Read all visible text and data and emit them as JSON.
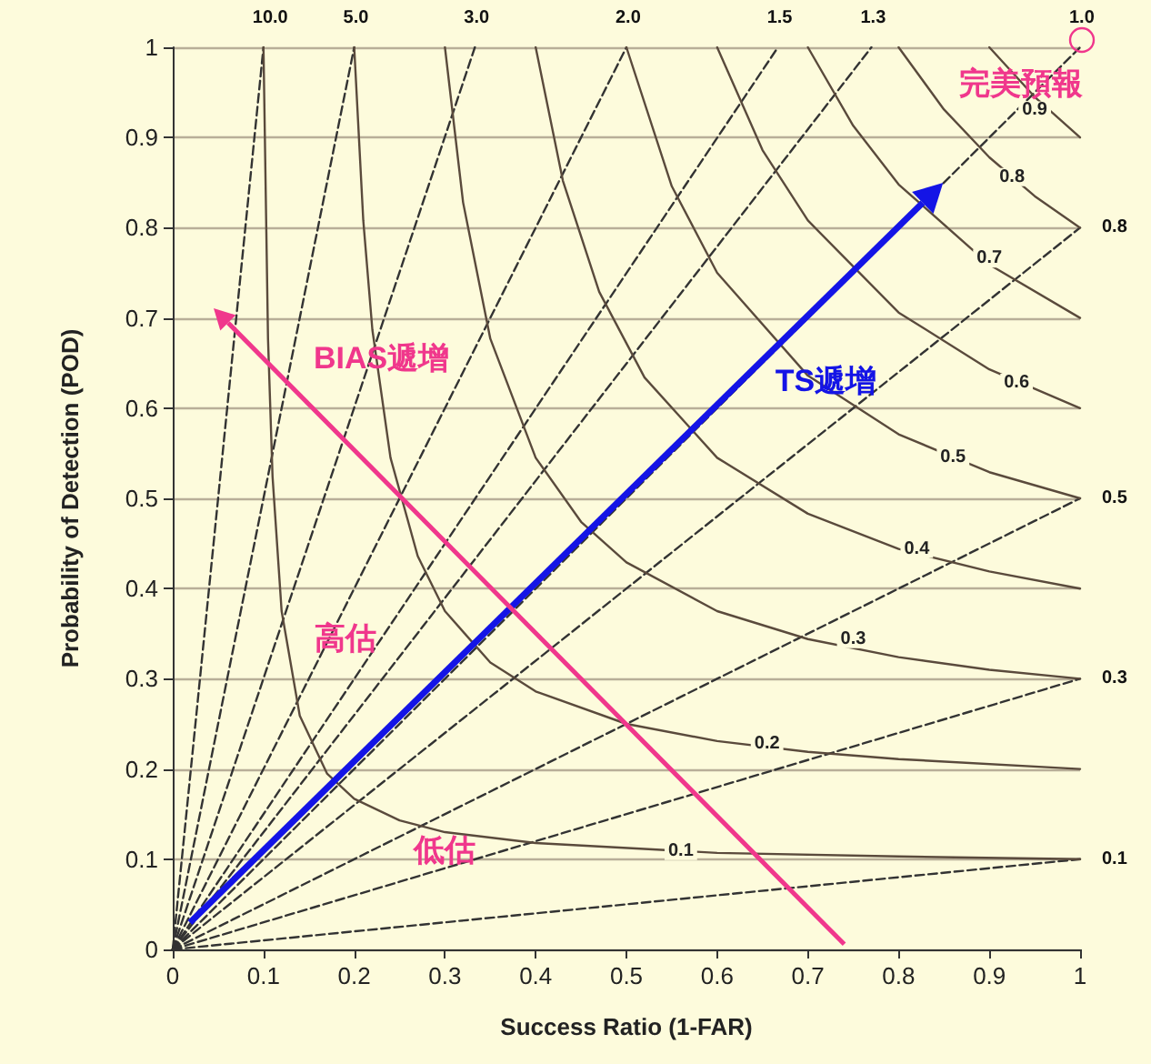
{
  "chart_data": {
    "type": "line",
    "xlabel": "Success Ratio (1-FAR)",
    "ylabel": "Probability of Detection (POD)",
    "xlim": [
      0,
      1
    ],
    "ylim": [
      0,
      1
    ],
    "xticks": [
      0,
      0.1,
      0.2,
      0.3,
      0.4,
      0.5,
      0.6,
      0.7,
      0.8,
      0.9,
      1
    ],
    "yticks": [
      0,
      0.1,
      0.2,
      0.3,
      0.4,
      0.5,
      0.6,
      0.7,
      0.8,
      0.9,
      1
    ],
    "grid": "y",
    "marker": "none",
    "series": [
      {
        "name": "10.0",
        "color": "#333333",
        "line_style": "dashed",
        "x": [
          0,
          0.1
        ],
        "values": [
          0,
          1
        ]
      },
      {
        "name": "5.0",
        "color": "#333333",
        "line_style": "dashed",
        "x": [
          0,
          0.2
        ],
        "values": [
          0,
          1
        ]
      },
      {
        "name": "3.0",
        "color": "#333333",
        "line_style": "dashed",
        "x": [
          0,
          0.333
        ],
        "values": [
          0,
          1
        ]
      },
      {
        "name": "2.0",
        "color": "#333333",
        "line_style": "dashed",
        "x": [
          0,
          0.5
        ],
        "values": [
          0,
          1
        ]
      },
      {
        "name": "1.5",
        "color": "#333333",
        "line_style": "dashed",
        "x": [
          0,
          0.667
        ],
        "values": [
          0,
          1
        ]
      },
      {
        "name": "1.3",
        "color": "#333333",
        "line_style": "dashed",
        "x": [
          0,
          0.77
        ],
        "values": [
          0,
          1
        ]
      },
      {
        "name": "1.0",
        "color": "#333333",
        "line_style": "dashed",
        "x": [
          0,
          1
        ],
        "values": [
          0,
          1
        ]
      },
      {
        "name": "0.8",
        "color": "#333333",
        "line_style": "dashed",
        "x": [
          0,
          1
        ],
        "values": [
          0,
          0.8
        ]
      },
      {
        "name": "0.5",
        "color": "#333333",
        "line_style": "dashed",
        "x": [
          0,
          1
        ],
        "values": [
          0,
          0.5
        ]
      },
      {
        "name": "0.3",
        "color": "#333333",
        "line_style": "dashed",
        "x": [
          0,
          1
        ],
        "values": [
          0,
          0.3
        ]
      },
      {
        "name": "0.1",
        "color": "#333333",
        "line_style": "dashed",
        "x": [
          0,
          1
        ],
        "values": [
          0,
          0.1
        ]
      },
      {
        "color": "#5a4a3c",
        "line_style": "solid",
        "x": [
          0.1,
          0.105,
          0.11,
          0.12,
          0.14,
          0.17,
          0.2,
          0.25,
          0.3,
          0.4,
          0.6,
          0.8,
          1
        ],
        "values": [
          1,
          0.677,
          0.524,
          0.375,
          0.259,
          0.195,
          0.167,
          0.143,
          0.13,
          0.118,
          0.107,
          0.103,
          0.1
        ]
      },
      {
        "color": "#5a4a3c",
        "line_style": "solid",
        "x": [
          0.2,
          0.21,
          0.22,
          0.24,
          0.27,
          0.3,
          0.35,
          0.4,
          0.5,
          0.6,
          0.7,
          0.8,
          1
        ],
        "values": [
          1,
          0.808,
          0.687,
          0.545,
          0.436,
          0.375,
          0.318,
          0.286,
          0.25,
          0.231,
          0.219,
          0.211,
          0.2
        ]
      },
      {
        "color": "#5a4a3c",
        "line_style": "solid",
        "x": [
          0.3,
          0.32,
          0.35,
          0.4,
          0.45,
          0.5,
          0.6,
          0.7,
          0.8,
          0.9,
          1
        ],
        "values": [
          1,
          0.828,
          0.677,
          0.545,
          0.474,
          0.429,
          0.375,
          0.344,
          0.324,
          0.31,
          0.3
        ]
      },
      {
        "color": "#5a4a3c",
        "line_style": "solid",
        "x": [
          0.4,
          0.43,
          0.47,
          0.52,
          0.6,
          0.7,
          0.8,
          0.9,
          1
        ],
        "values": [
          1,
          0.852,
          0.729,
          0.634,
          0.545,
          0.483,
          0.444,
          0.419,
          0.4
        ]
      },
      {
        "color": "#5a4a3c",
        "line_style": "solid",
        "x": [
          0.5,
          0.55,
          0.6,
          0.7,
          0.8,
          0.9,
          1
        ],
        "values": [
          1,
          0.846,
          0.75,
          0.636,
          0.571,
          0.529,
          0.5
        ]
      },
      {
        "color": "#5a4a3c",
        "line_style": "solid",
        "x": [
          0.6,
          0.65,
          0.7,
          0.8,
          0.9,
          1
        ],
        "values": [
          1,
          0.886,
          0.808,
          0.706,
          0.643,
          0.6
        ]
      },
      {
        "color": "#5a4a3c",
        "line_style": "solid",
        "x": [
          0.7,
          0.75,
          0.8,
          0.9,
          1
        ],
        "values": [
          1,
          0.913,
          0.848,
          0.759,
          0.7
        ]
      },
      {
        "color": "#5a4a3c",
        "line_style": "solid",
        "x": [
          0.8,
          0.85,
          0.9,
          0.95,
          1
        ],
        "values": [
          1,
          0.931,
          0.878,
          0.835,
          0.8
        ]
      },
      {
        "color": "#5a4a3c",
        "line_style": "solid",
        "x": [
          0.9,
          0.95,
          1
        ],
        "values": [
          1,
          0.945,
          0.9
        ]
      }
    ],
    "annotations": [
      {
        "text": "0.1",
        "x": 0.56,
        "y": 0.109
      },
      {
        "text": "0.2",
        "x": 0.655,
        "y": 0.228
      },
      {
        "text": "0.3",
        "x": 0.75,
        "y": 0.344
      },
      {
        "text": "0.4",
        "x": 0.82,
        "y": 0.444
      },
      {
        "text": "0.5",
        "x": 0.86,
        "y": 0.545
      },
      {
        "text": "0.6",
        "x": 0.93,
        "y": 0.628
      },
      {
        "text": "0.7",
        "x": 0.9,
        "y": 0.766
      },
      {
        "text": "0.8",
        "x": 0.925,
        "y": 0.856
      },
      {
        "text": "0.9",
        "x": 0.95,
        "y": 0.93
      },
      "BIAS遞增",
      "TS遞增",
      "高估",
      "低估",
      "完美預報"
    ]
  }
}
